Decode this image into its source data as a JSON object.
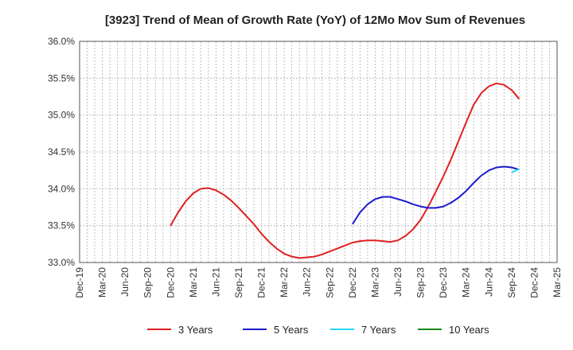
{
  "chart_data": {
    "type": "line",
    "title": "[3923]  Trend of Mean of Growth Rate (YoY) of 12Mo Mov Sum of Revenues",
    "xlabel": "",
    "ylabel": "",
    "ylim": [
      33.0,
      36.0
    ],
    "y_ticks": [
      "33.0%",
      "33.5%",
      "34.0%",
      "34.5%",
      "35.0%",
      "35.5%",
      "36.0%"
    ],
    "x_ticks": [
      "Dec-19",
      "Mar-20",
      "Jun-20",
      "Sep-20",
      "Dec-20",
      "Mar-21",
      "Jun-21",
      "Sep-21",
      "Dec-21",
      "Mar-22",
      "Jun-22",
      "Sep-22",
      "Dec-22",
      "Mar-23",
      "Jun-23",
      "Sep-23",
      "Dec-23",
      "Mar-24",
      "Jun-24",
      "Sep-24",
      "Dec-24",
      "Mar-25"
    ],
    "grid": true,
    "legend_position": "bottom",
    "series": [
      {
        "name": "3 Years",
        "color": "#e02020",
        "points": [
          [
            12,
            33.5
          ],
          [
            13,
            33.68
          ],
          [
            14,
            33.83
          ],
          [
            15,
            33.94
          ],
          [
            16,
            34.0
          ],
          [
            17,
            34.01
          ],
          [
            18,
            33.98
          ],
          [
            19,
            33.92
          ],
          [
            20,
            33.84
          ],
          [
            21,
            33.74
          ],
          [
            22,
            33.63
          ],
          [
            23,
            33.52
          ],
          [
            24,
            33.39
          ],
          [
            25,
            33.28
          ],
          [
            26,
            33.19
          ],
          [
            27,
            33.12
          ],
          [
            28,
            33.08
          ],
          [
            29,
            33.06
          ],
          [
            30,
            33.07
          ],
          [
            31,
            33.08
          ],
          [
            32,
            33.11
          ],
          [
            33,
            33.15
          ],
          [
            34,
            33.19
          ],
          [
            35,
            33.23
          ],
          [
            36,
            33.27
          ],
          [
            37,
            33.29
          ],
          [
            38,
            33.3
          ],
          [
            39,
            33.3
          ],
          [
            40,
            33.29
          ],
          [
            41,
            33.28
          ],
          [
            42,
            33.3
          ],
          [
            43,
            33.36
          ],
          [
            44,
            33.45
          ],
          [
            45,
            33.58
          ],
          [
            46,
            33.76
          ],
          [
            47,
            33.96
          ],
          [
            48,
            34.17
          ],
          [
            49,
            34.4
          ],
          [
            50,
            34.65
          ],
          [
            51,
            34.9
          ],
          [
            52,
            35.14
          ],
          [
            53,
            35.3
          ],
          [
            54,
            35.39
          ],
          [
            55,
            35.43
          ],
          [
            56,
            35.41
          ],
          [
            57,
            35.34
          ],
          [
            58,
            35.22
          ]
        ]
      },
      {
        "name": "5 Years",
        "color": "#1a1ad0",
        "points": [
          [
            36,
            33.52
          ],
          [
            37,
            33.68
          ],
          [
            38,
            33.79
          ],
          [
            39,
            33.86
          ],
          [
            40,
            33.89
          ],
          [
            41,
            33.89
          ],
          [
            42,
            33.86
          ],
          [
            43,
            33.83
          ],
          [
            44,
            33.79
          ],
          [
            45,
            33.76
          ],
          [
            46,
            33.74
          ],
          [
            47,
            33.74
          ],
          [
            48,
            33.76
          ],
          [
            49,
            33.81
          ],
          [
            50,
            33.88
          ],
          [
            51,
            33.97
          ],
          [
            52,
            34.08
          ],
          [
            53,
            34.18
          ],
          [
            54,
            34.25
          ],
          [
            55,
            34.29
          ],
          [
            56,
            34.3
          ],
          [
            57,
            34.29
          ],
          [
            58,
            34.26
          ]
        ]
      },
      {
        "name": "7 Years",
        "color": "#22d8f0",
        "points": [
          [
            57,
            34.22
          ],
          [
            58,
            34.27
          ]
        ]
      },
      {
        "name": "10 Years",
        "color": "#1a8a1a",
        "points": []
      }
    ]
  }
}
